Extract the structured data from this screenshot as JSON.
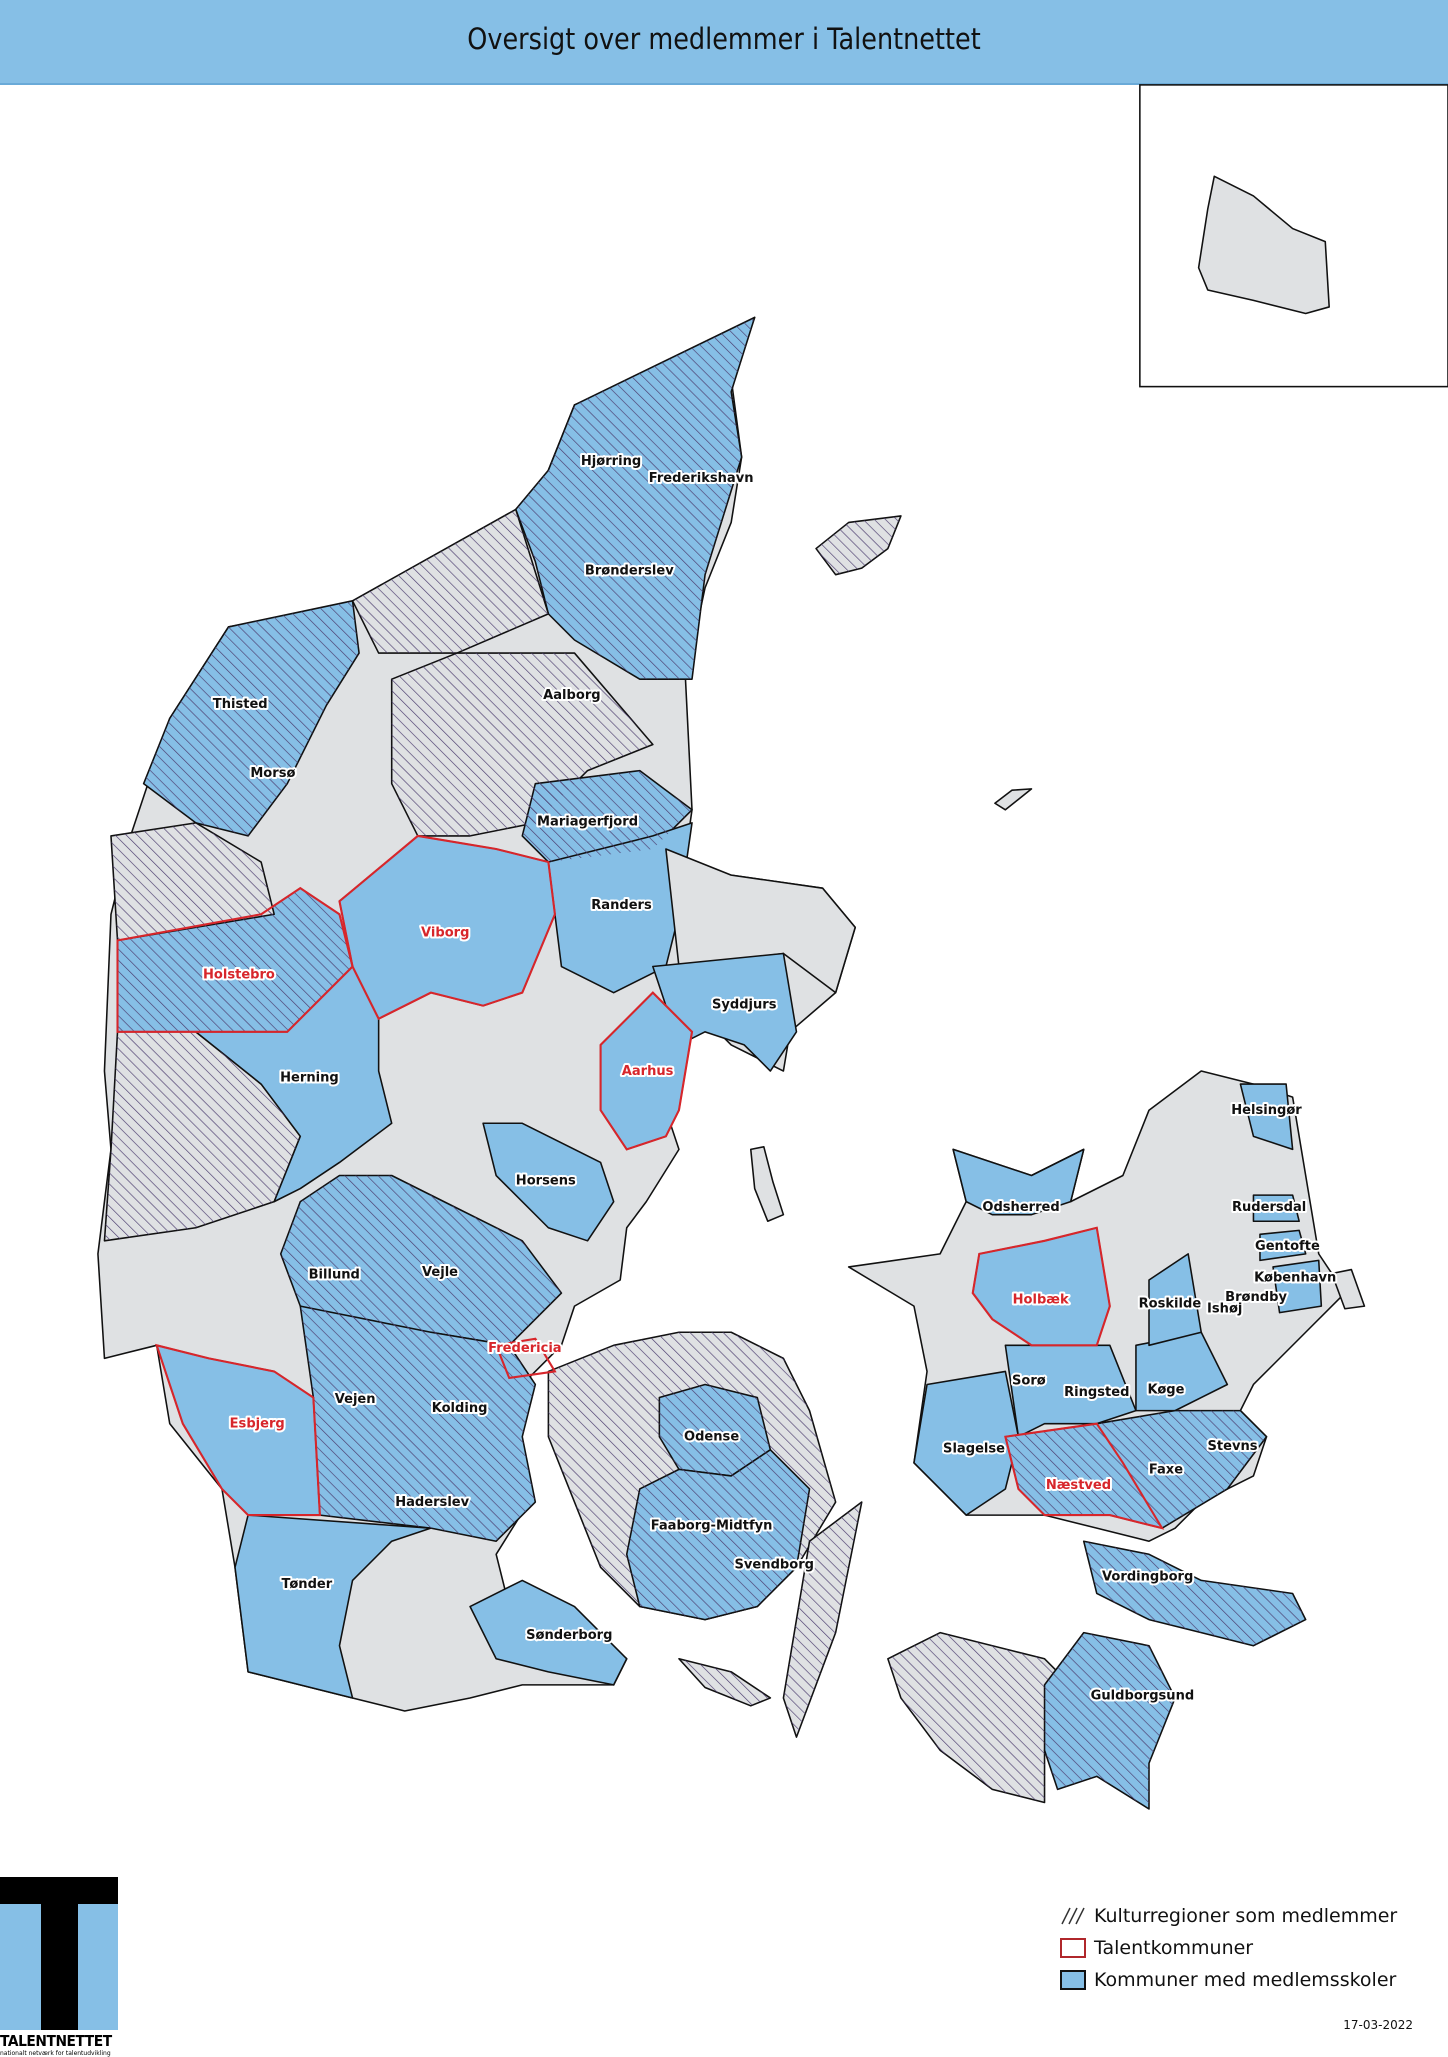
{
  "header": {
    "title": "Oversigt over medlemmer i Talentnettet"
  },
  "colors": {
    "member_blue": "#86bfe6",
    "other_gray": "#dfe1e3",
    "talent_red": "#d7262b",
    "hatch": "#4b3c6e"
  },
  "labels": [
    {
      "name": "Hjørring",
      "talent": false
    },
    {
      "name": "Frederikshavn",
      "talent": false
    },
    {
      "name": "Brønderslev",
      "talent": false
    },
    {
      "name": "Thisted",
      "talent": false
    },
    {
      "name": "Aalborg",
      "talent": false
    },
    {
      "name": "Morsø",
      "talent": false
    },
    {
      "name": "Mariagerfjord",
      "talent": false
    },
    {
      "name": "Randers",
      "talent": false
    },
    {
      "name": "Viborg",
      "talent": true
    },
    {
      "name": "Holstebro",
      "talent": true
    },
    {
      "name": "Syddjurs",
      "talent": false
    },
    {
      "name": "Herning",
      "talent": false
    },
    {
      "name": "Aarhus",
      "talent": true
    },
    {
      "name": "Horsens",
      "talent": false
    },
    {
      "name": "Billund",
      "talent": false
    },
    {
      "name": "Vejle",
      "talent": false
    },
    {
      "name": "Fredericia",
      "talent": true
    },
    {
      "name": "Vejen",
      "talent": false
    },
    {
      "name": "Kolding",
      "talent": false
    },
    {
      "name": "Esbjerg",
      "talent": true
    },
    {
      "name": "Odense",
      "talent": false
    },
    {
      "name": "Haderslev",
      "talent": false
    },
    {
      "name": "Faaborg-Midtfyn",
      "talent": false
    },
    {
      "name": "Svendborg",
      "talent": false
    },
    {
      "name": "Tønder",
      "talent": false
    },
    {
      "name": "Sønderborg",
      "talent": false
    },
    {
      "name": "Helsingør",
      "talent": false
    },
    {
      "name": "Odsherred",
      "talent": false
    },
    {
      "name": "Rudersdal",
      "talent": false
    },
    {
      "name": "Gentofte",
      "talent": false
    },
    {
      "name": "København",
      "talent": false
    },
    {
      "name": "Holbæk",
      "talent": true
    },
    {
      "name": "Roskilde",
      "talent": false
    },
    {
      "name": "Brøndby",
      "talent": false
    },
    {
      "name": "Ishøj",
      "talent": false
    },
    {
      "name": "Sorø",
      "talent": false
    },
    {
      "name": "Ringsted",
      "talent": false
    },
    {
      "name": "Køge",
      "talent": false
    },
    {
      "name": "Slagelse",
      "talent": false
    },
    {
      "name": "Stevns",
      "talent": false
    },
    {
      "name": "Næstved",
      "talent": true
    },
    {
      "name": "Faxe",
      "talent": false
    },
    {
      "name": "Vordingborg",
      "talent": false
    },
    {
      "name": "Guldborgsund",
      "talent": false
    }
  ],
  "legend": {
    "items": [
      {
        "label": "Kulturregioner som medlemmer",
        "symbol": "hatch"
      },
      {
        "label": "Talentkommuner",
        "symbol": "red-outline"
      },
      {
        "label": "Kommuner med medlemsskoler",
        "symbol": "blue-fill"
      }
    ]
  },
  "logo": {
    "name": "TALENTNETTET",
    "tagline": "nationalt netværk for talentudvikling"
  },
  "date": "17-03-2022"
}
